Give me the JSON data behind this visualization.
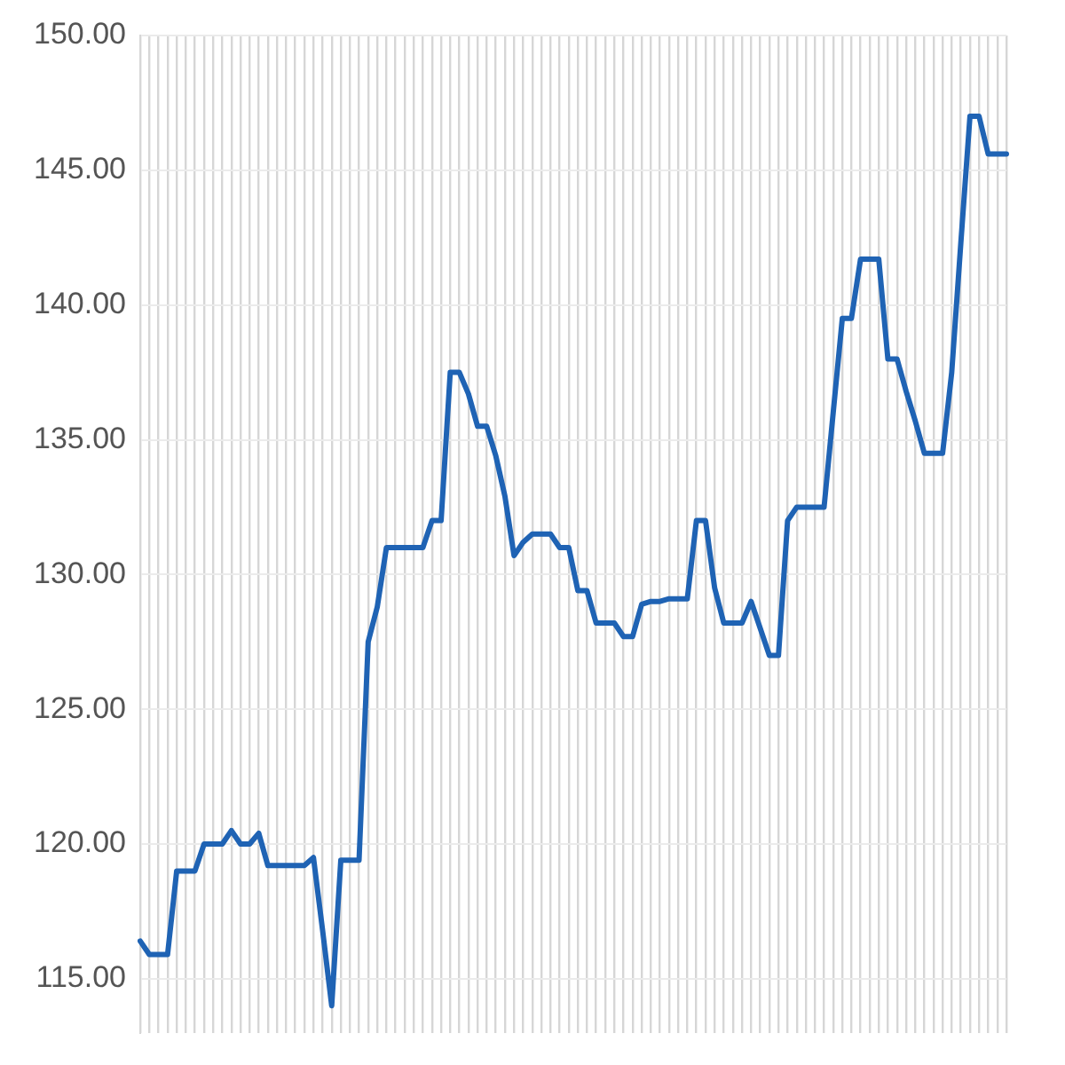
{
  "chart_data": {
    "type": "line",
    "categories": [
      null,
      null,
      null,
      null,
      null,
      null,
      null,
      null,
      null,
      null,
      null,
      null,
      null,
      null,
      null,
      null,
      null,
      null,
      null,
      null,
      null,
      null,
      null,
      null,
      null,
      null,
      null,
      null,
      null,
      null,
      null,
      null,
      null,
      null,
      null,
      null,
      null,
      null,
      null,
      null,
      null,
      null,
      null,
      null,
      null,
      null,
      null,
      null,
      null,
      null,
      null,
      null,
      null,
      null,
      null,
      null,
      null,
      null,
      null,
      null,
      null,
      null,
      null,
      null,
      null,
      null,
      null,
      null,
      null,
      null,
      null,
      null,
      null,
      null,
      null,
      null,
      null,
      null,
      null,
      null,
      null,
      null,
      null,
      null,
      null,
      null,
      null,
      null,
      null,
      null,
      null,
      null,
      null,
      null,
      null,
      null
    ],
    "series": [
      {
        "color": "#1f63b4",
        "values": [
          116.4,
          115.9,
          115.9,
          115.9,
          119.0,
          119.0,
          119.0,
          120.0,
          120.0,
          120.0,
          120.5,
          120.0,
          120.0,
          120.4,
          119.2,
          119.2,
          119.2,
          119.2,
          119.2,
          119.5,
          116.8,
          114.0,
          119.4,
          119.4,
          119.4,
          127.5,
          128.8,
          131.0,
          131.0,
          131.0,
          131.0,
          131.0,
          132.0,
          132.0,
          137.5,
          137.5,
          136.7,
          135.5,
          135.5,
          134.4,
          132.9,
          130.7,
          131.2,
          131.5,
          131.5,
          131.5,
          131.0,
          131.0,
          129.4,
          129.4,
          128.2,
          128.2,
          128.2,
          127.7,
          127.7,
          128.9,
          129.0,
          129.0,
          129.1,
          129.1,
          129.1,
          132.0,
          132.0,
          129.5,
          128.2,
          128.2,
          128.2,
          129.0,
          128.0,
          127.0,
          127.0,
          132.0,
          132.5,
          132.5,
          132.5,
          132.5,
          136.0,
          139.5,
          139.5,
          141.7,
          141.7,
          141.7,
          138.0,
          138.0,
          136.8,
          135.7,
          134.5,
          134.5,
          134.5,
          137.5,
          142.3,
          147.0,
          147.0,
          145.6,
          145.6,
          145.6
        ]
      }
    ],
    "ylim": [
      113,
      150
    ],
    "yticks": [
      {
        "value": 115,
        "label": "115.00"
      },
      {
        "value": 120,
        "label": "120.00"
      },
      {
        "value": 125,
        "label": "125.00"
      },
      {
        "value": 130,
        "label": "130.00"
      },
      {
        "value": 135,
        "label": "135.00"
      },
      {
        "value": 140,
        "label": "140.00"
      },
      {
        "value": 145,
        "label": "145.00"
      },
      {
        "value": 150,
        "label": "150.00"
      }
    ],
    "grid": true,
    "legend": false,
    "tick_labels": "y",
    "marker": "none",
    "line_style": "solid"
  }
}
